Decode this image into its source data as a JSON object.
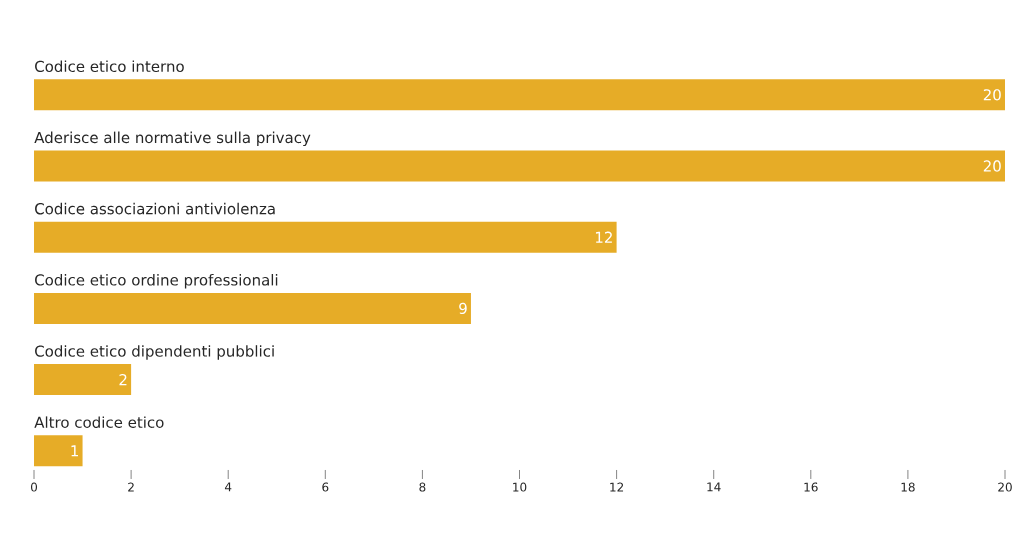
{
  "chart_data": {
    "type": "bar",
    "orientation": "horizontal",
    "categories": [
      "Codice etico interno",
      "Aderisce alle normative sulla privacy",
      "Codice associazioni antiviolenza",
      "Codice etico ordine professionali",
      "Codice etico dipendenti pubblici",
      "Altro codice etico"
    ],
    "values": [
      20,
      20,
      12,
      9,
      2,
      1
    ],
    "color": "#e6ac27",
    "xlim": [
      0,
      20
    ],
    "xticks": [
      0,
      2,
      4,
      6,
      8,
      10,
      12,
      14,
      16,
      18,
      20
    ],
    "data_labels": true
  }
}
